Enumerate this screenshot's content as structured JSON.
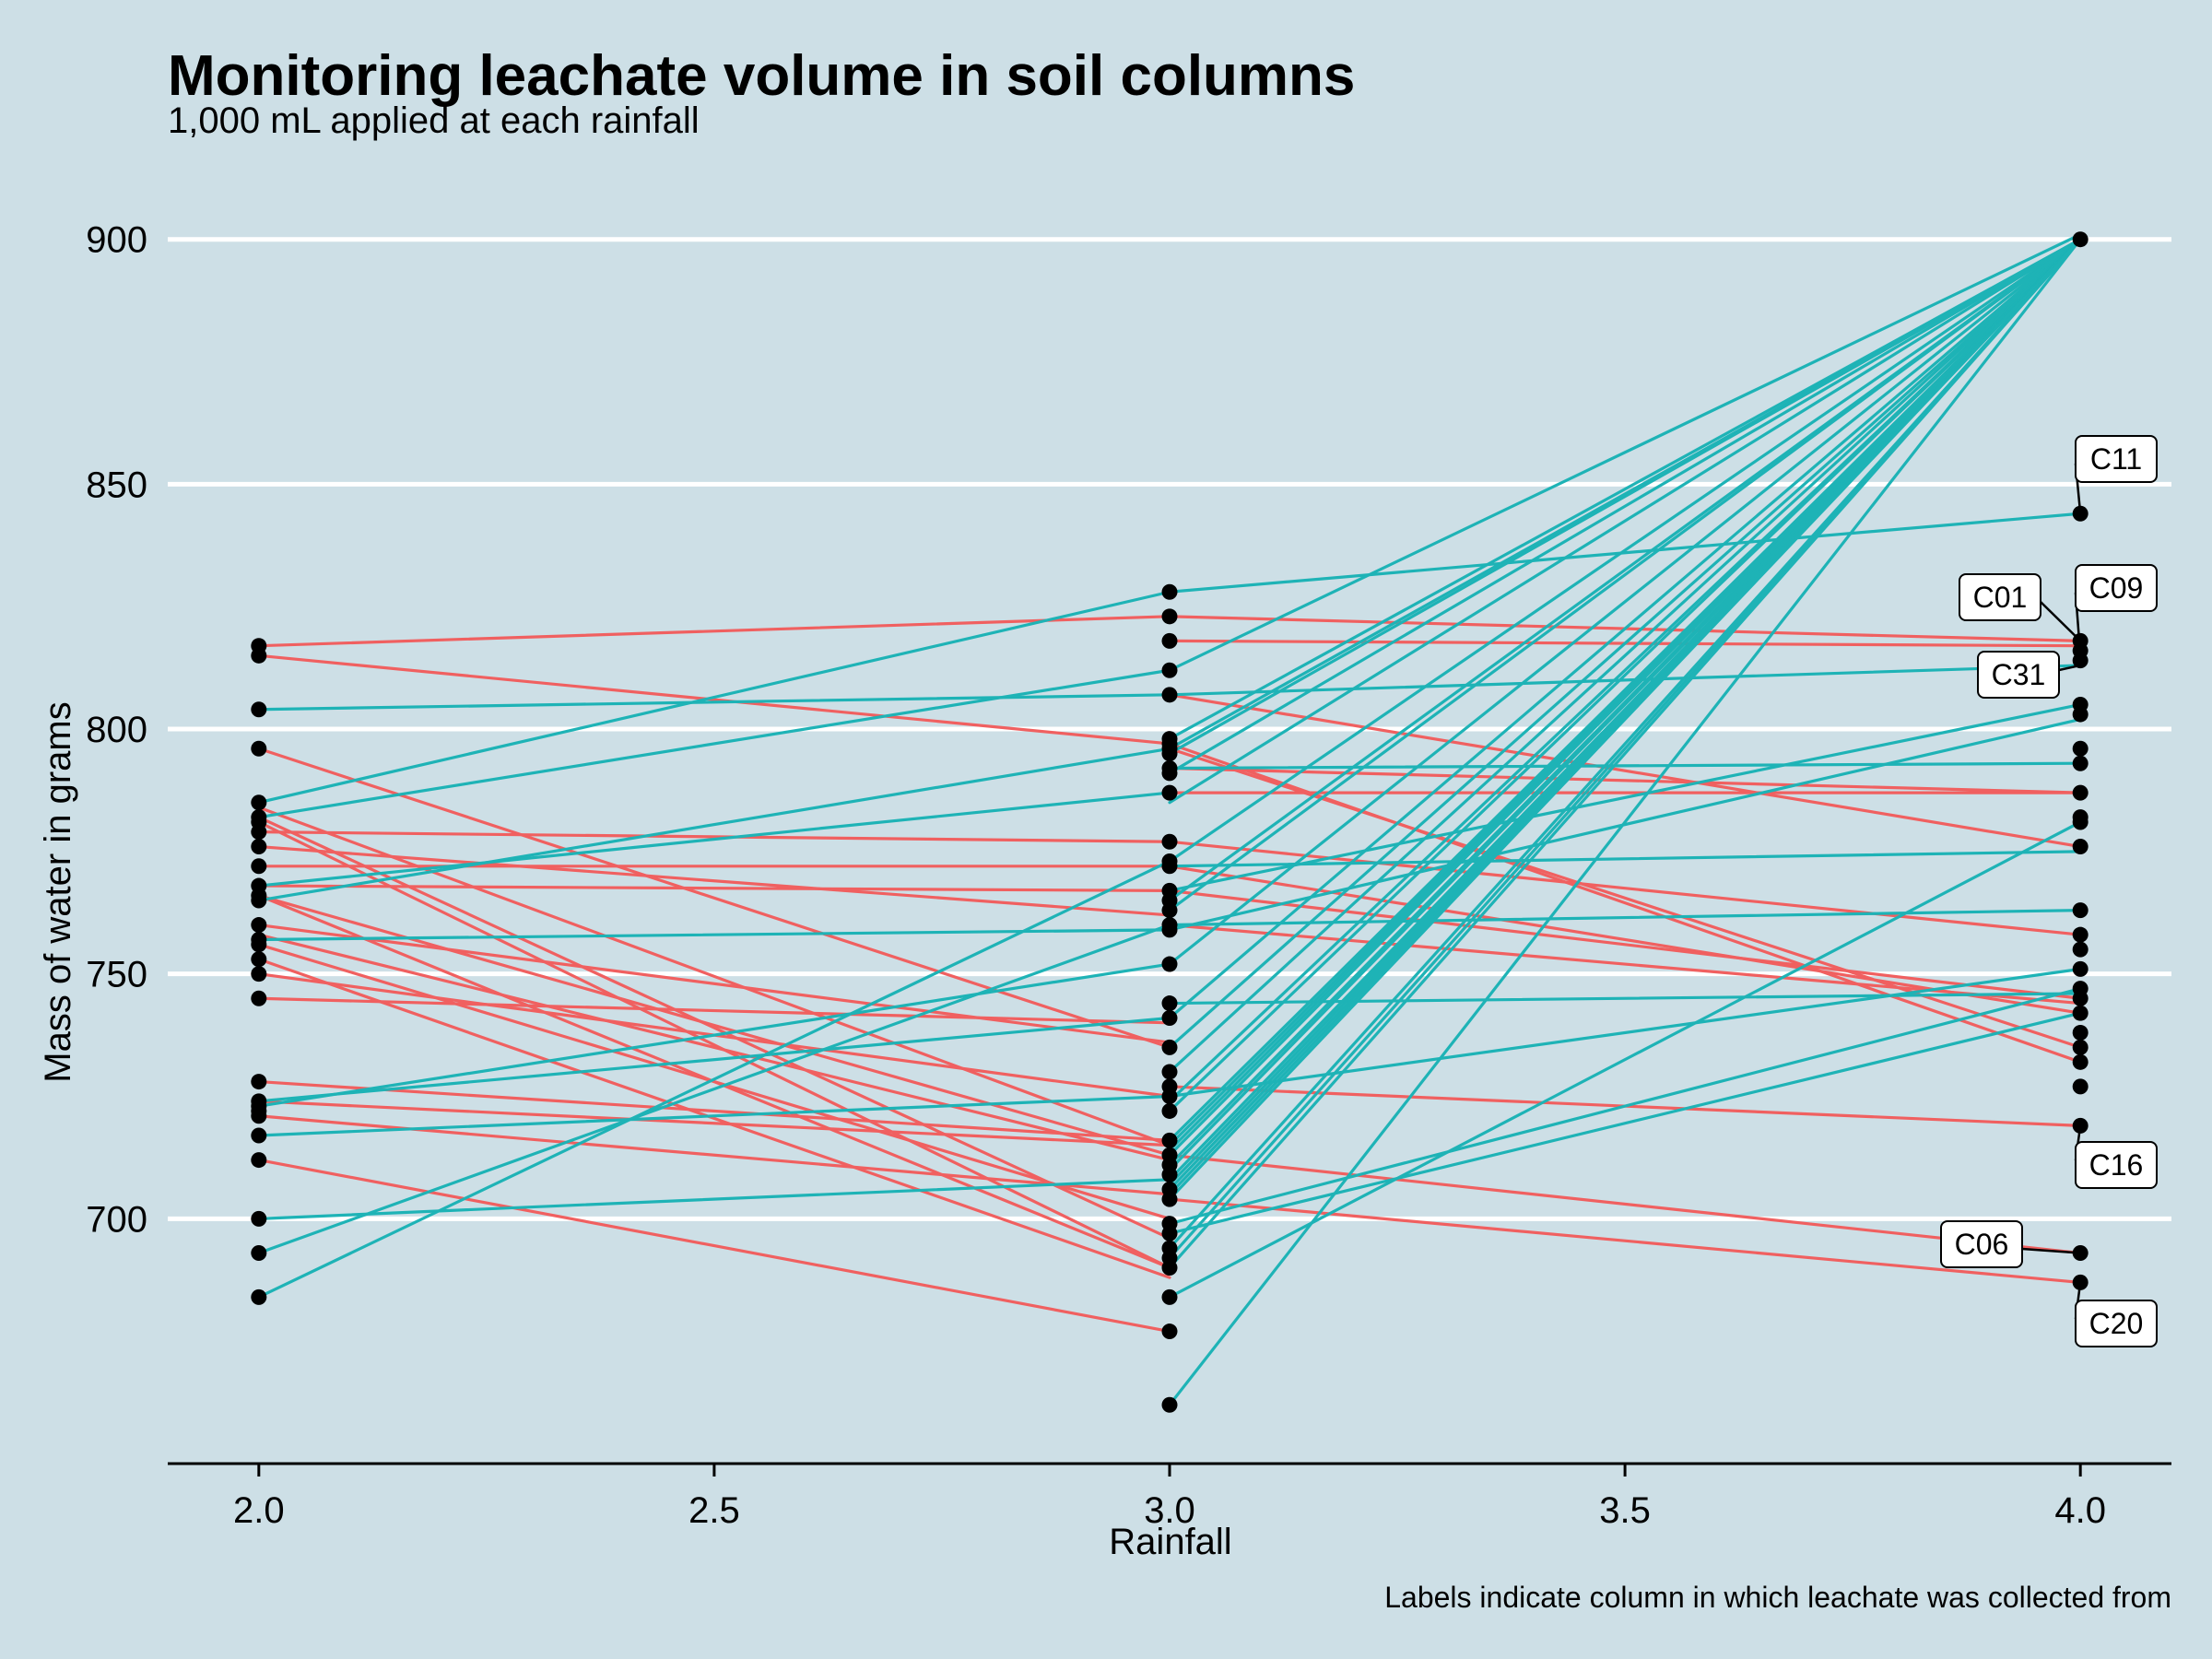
{
  "chart_data": {
    "type": "line",
    "title": "Monitoring leachate volume in soil columns",
    "subtitle": "1,000 mL applied at each rainfall",
    "xlabel": "Rainfall",
    "ylabel": "Mass of water in grams",
    "caption": "Labels indicate column in which leachate was collected from",
    "xlim": [
      1.9,
      4.1
    ],
    "ylim": [
      650,
      915
    ],
    "x_ticks": [
      "2.0",
      "2.5",
      "3.0",
      "3.5",
      "4.0"
    ],
    "y_ticks": [
      "700",
      "750",
      "800",
      "850",
      "900"
    ],
    "grid": "horizontal major gridlines",
    "legend": "none",
    "colors": {
      "background": "#cddfe6",
      "grid": "#ffffff",
      "decrease": "#f06060",
      "increase": "#1eb3b6",
      "point": "#000000"
    },
    "segments_2_to_3": {
      "decreasing": [
        [
          817,
          823
        ],
        [
          815,
          797
        ],
        [
          796,
          735
        ],
        [
          784,
          715
        ],
        [
          782,
          696
        ],
        [
          781,
          690
        ],
        [
          779,
          777
        ],
        [
          776,
          762
        ],
        [
          772,
          772
        ],
        [
          768,
          767
        ],
        [
          766,
          690
        ],
        [
          766,
          713
        ],
        [
          760,
          736
        ],
        [
          758,
          712
        ],
        [
          756,
          700
        ],
        [
          753,
          688
        ],
        [
          750,
          725
        ],
        [
          745,
          740
        ],
        [
          728,
          716
        ],
        [
          724,
          715
        ],
        [
          721,
          705
        ],
        [
          712,
          677
        ]
      ],
      "increasing": [
        [
          804,
          807
        ],
        [
          785,
          828
        ],
        [
          782,
          812
        ],
        [
          768,
          787
        ],
        [
          765,
          796
        ],
        [
          757,
          759
        ],
        [
          724,
          741
        ],
        [
          723,
          752
        ],
        [
          717,
          725
        ],
        [
          700,
          708
        ],
        [
          693,
          760
        ],
        [
          684,
          773
        ]
      ]
    },
    "segments_3_to_4": {
      "decreasing": [
        [
          823,
          818
        ],
        [
          818,
          817
        ],
        [
          807,
          776
        ],
        [
          797,
          732
        ],
        [
          796,
          735
        ],
        [
          792,
          787
        ],
        [
          787,
          787
        ],
        [
          777,
          758
        ],
        [
          772,
          742
        ],
        [
          767,
          745
        ],
        [
          760,
          744
        ],
        [
          727,
          719
        ],
        [
          713,
          693
        ],
        [
          704,
          687
        ]
      ],
      "increasing": [
        [
          828,
          844
        ],
        [
          812,
          901
        ],
        [
          807,
          813
        ],
        [
          798,
          900
        ],
        [
          796,
          900
        ],
        [
          795,
          900
        ],
        [
          792,
          793
        ],
        [
          791,
          900
        ],
        [
          785,
          900
        ],
        [
          773,
          900
        ],
        [
          772,
          775
        ],
        [
          767,
          805
        ],
        [
          765,
          900
        ],
        [
          763,
          900
        ],
        [
          760,
          763
        ],
        [
          759,
          802
        ],
        [
          752,
          900
        ],
        [
          744,
          746
        ],
        [
          741,
          900
        ],
        [
          735,
          900
        ],
        [
          730,
          900
        ],
        [
          725,
          751
        ],
        [
          724,
          900
        ],
        [
          722,
          900
        ],
        [
          716,
          900
        ],
        [
          715,
          900
        ],
        [
          714,
          900
        ],
        [
          713,
          900
        ],
        [
          711,
          900
        ],
        [
          710,
          900
        ],
        [
          708,
          900
        ],
        [
          707,
          900
        ],
        [
          706,
          900
        ],
        [
          705,
          900
        ],
        [
          704,
          900
        ],
        [
          699,
          747
        ],
        [
          697,
          742
        ],
        [
          694,
          900
        ],
        [
          692,
          900
        ],
        [
          690,
          900
        ],
        [
          684,
          781
        ],
        [
          662,
          900
        ]
      ]
    },
    "points": {
      "x2": [
        817,
        815,
        804,
        796,
        785,
        782,
        781,
        779,
        776,
        772,
        768,
        766,
        765,
        760,
        757,
        756,
        753,
        750,
        745,
        728,
        724,
        723,
        722,
        721,
        717,
        712,
        700,
        693,
        684
      ],
      "x3": [
        828,
        823,
        818,
        812,
        807,
        798,
        797,
        796,
        795,
        792,
        791,
        787,
        777,
        773,
        772,
        767,
        765,
        763,
        760,
        759,
        752,
        744,
        741,
        735,
        730,
        727,
        725,
        722,
        716,
        713,
        711,
        709,
        706,
        704,
        699,
        697,
        694,
        692,
        690,
        684,
        677,
        662
      ],
      "x4": [
        900,
        844,
        818,
        816,
        814,
        805,
        803,
        796,
        793,
        787,
        782,
        781,
        776,
        763,
        758,
        755,
        751,
        747,
        745,
        742,
        738,
        735,
        732,
        727,
        719,
        693,
        687
      ]
    },
    "annotations": [
      {
        "text": "C11",
        "y": 844,
        "side": "right"
      },
      {
        "text": "C01",
        "y": 818,
        "side": "left"
      },
      {
        "text": "C09",
        "y": 815,
        "side": "right"
      },
      {
        "text": "C31",
        "y": 813,
        "side": "left"
      },
      {
        "text": "C16",
        "y": 719,
        "side": "right"
      },
      {
        "text": "C06",
        "y": 693,
        "side": "left"
      },
      {
        "text": "C20",
        "y": 687,
        "side": "right"
      }
    ]
  }
}
